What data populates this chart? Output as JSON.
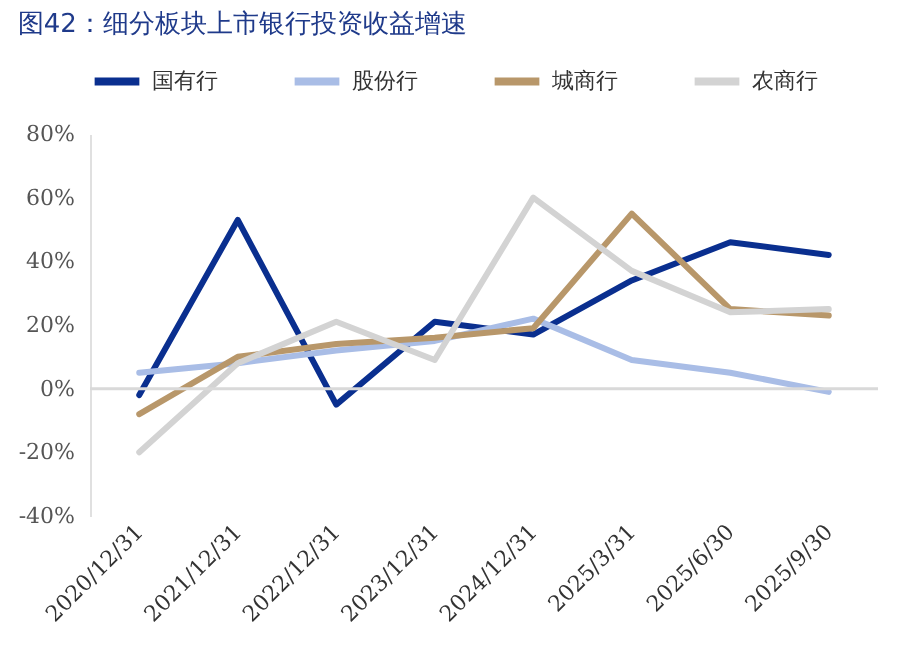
{
  "chart_data": {
    "type": "line",
    "title": "图42：细分板块上市银行投资收益增速",
    "categories": [
      "2020/12/31",
      "2021/12/31",
      "2022/12/31",
      "2023/12/31",
      "2024/12/31",
      "2025/3/31",
      "2025/6/30",
      "2025/9/30"
    ],
    "series": [
      {
        "name": "国有行",
        "color": "#0a2f8f",
        "values": [
          -2,
          53,
          -5,
          21,
          17,
          34,
          46,
          42
        ]
      },
      {
        "name": "股份行",
        "color": "#a9bde6",
        "values": [
          5,
          8,
          12,
          15,
          22,
          9,
          5,
          -1
        ]
      },
      {
        "name": "城商行",
        "color": "#b8976a",
        "values": [
          -8,
          10,
          14,
          16,
          19,
          55,
          25,
          23
        ]
      },
      {
        "name": "农商行",
        "color": "#d3d3d3",
        "values": [
          -20,
          8,
          21,
          9,
          60,
          37,
          24,
          25
        ]
      }
    ],
    "ylim": [
      -40,
      80
    ],
    "yticks": [
      {
        "value": -40,
        "label": "-40%"
      },
      {
        "value": -20,
        "label": "-20%"
      },
      {
        "value": 0,
        "label": "0%"
      },
      {
        "value": 20,
        "label": "20%"
      },
      {
        "value": 40,
        "label": "40%"
      },
      {
        "value": 60,
        "label": "60%"
      },
      {
        "value": 80,
        "label": "80%"
      }
    ],
    "ref_lines": [
      {
        "axis": "y",
        "value": 0,
        "color": "#d9d9d9"
      }
    ],
    "grid": false,
    "legend": "top",
    "marker": "none",
    "line_style": "solid"
  }
}
